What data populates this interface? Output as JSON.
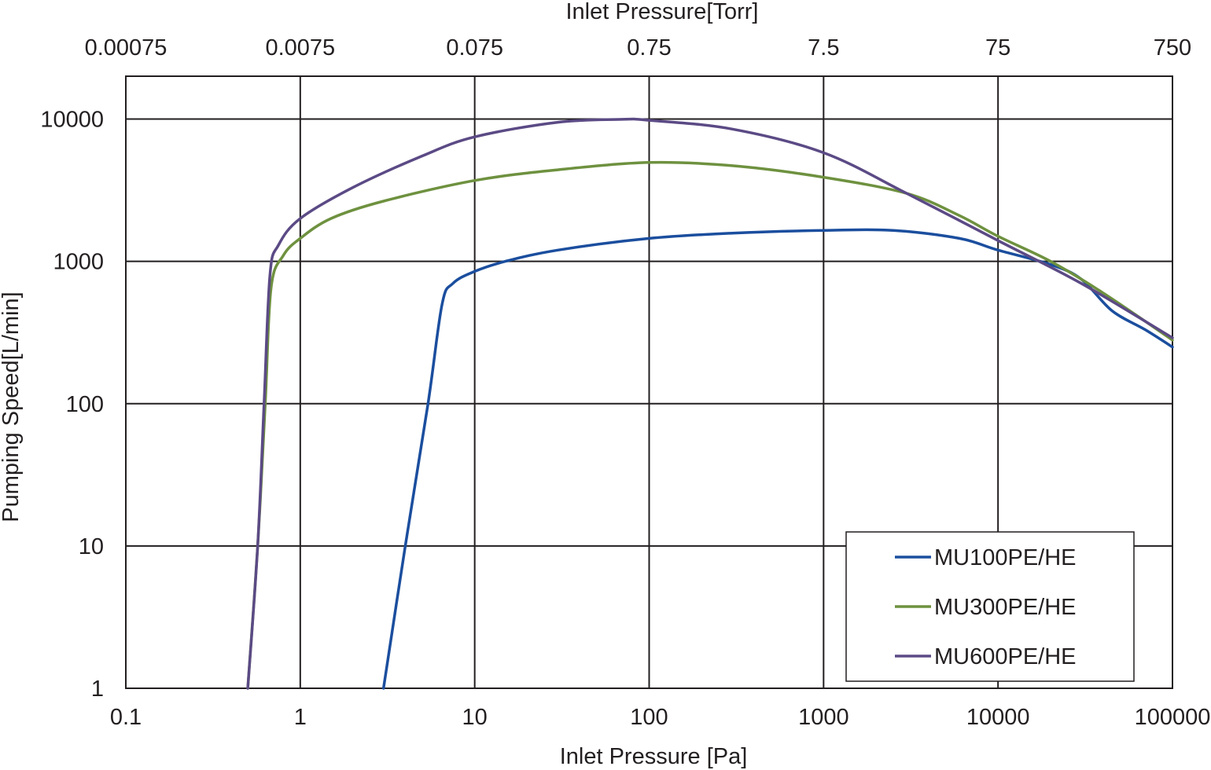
{
  "chart_data": {
    "type": "line",
    "xlabel": "Inlet Pressure [Pa]",
    "ylabel": "Pumping Speed[L/min]",
    "x2label": "Inlet Pressure[Torr]",
    "xscale": "log",
    "yscale": "log",
    "xlim": [
      0.1,
      100000
    ],
    "ylim": [
      1,
      20000
    ],
    "x_ticks": [
      "0.1",
      "1",
      "10",
      "100",
      "1000",
      "10000",
      "100000"
    ],
    "x2_ticks": [
      "0.00075",
      "0.0075",
      "0.075",
      "0.75",
      "7.5",
      "75",
      "750"
    ],
    "y_ticks": [
      "1",
      "10",
      "100",
      "1000",
      "10000"
    ],
    "grid": true,
    "legend_position": "bottom-right",
    "series": [
      {
        "name": "MU100PE/HE",
        "color": "#1b4e9e",
        "points": [
          [
            3.0,
            1
          ],
          [
            4.0,
            10
          ],
          [
            5.4,
            100
          ],
          [
            6.5,
            500
          ],
          [
            7.5,
            700
          ],
          [
            10,
            850
          ],
          [
            15,
            1000
          ],
          [
            30,
            1200
          ],
          [
            100,
            1450
          ],
          [
            300,
            1580
          ],
          [
            1000,
            1650
          ],
          [
            2500,
            1650
          ],
          [
            6000,
            1450
          ],
          [
            10000,
            1200
          ],
          [
            20000,
            950
          ],
          [
            30000,
            750
          ],
          [
            45000,
            450
          ],
          [
            70000,
            330
          ],
          [
            100000,
            250
          ]
        ]
      },
      {
        "name": "MU300PE/HE",
        "color": "#6e913f",
        "points": [
          [
            0.5,
            1
          ],
          [
            0.57,
            10
          ],
          [
            0.63,
            100
          ],
          [
            0.68,
            650
          ],
          [
            0.8,
            1100
          ],
          [
            1,
            1450
          ],
          [
            1.5,
            2000
          ],
          [
            3,
            2650
          ],
          [
            10,
            3700
          ],
          [
            30,
            4400
          ],
          [
            100,
            4950
          ],
          [
            300,
            4700
          ],
          [
            1000,
            3900
          ],
          [
            3000,
            3000
          ],
          [
            6000,
            2100
          ],
          [
            10000,
            1500
          ],
          [
            20000,
            1000
          ],
          [
            40000,
            600
          ],
          [
            100000,
            280
          ]
        ]
      },
      {
        "name": "MU600PE/HE",
        "color": "#5b4a85",
        "points": [
          [
            0.5,
            1
          ],
          [
            0.57,
            10
          ],
          [
            0.62,
            100
          ],
          [
            0.67,
            800
          ],
          [
            0.75,
            1300
          ],
          [
            1,
            2000
          ],
          [
            2,
            3300
          ],
          [
            5,
            5500
          ],
          [
            10,
            7500
          ],
          [
            30,
            9500
          ],
          [
            70,
            9950
          ],
          [
            100,
            9800
          ],
          [
            300,
            8500
          ],
          [
            1000,
            5800
          ],
          [
            3000,
            3000
          ],
          [
            10000,
            1400
          ],
          [
            30000,
            700
          ],
          [
            100000,
            290
          ]
        ]
      }
    ]
  }
}
